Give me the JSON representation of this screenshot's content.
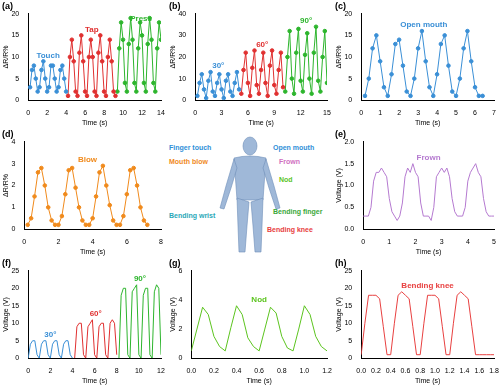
{
  "chart_data": [
    {
      "type": "line",
      "title": "(a)",
      "x_label": "Time (s)",
      "y_label": "ΔR/R%",
      "marker": "circle",
      "grid": false,
      "xlim": [
        0,
        14
      ],
      "xticks": [
        0,
        2,
        4,
        6,
        8,
        10,
        12,
        14
      ],
      "ylim": [
        0,
        20
      ],
      "yticks": [
        0,
        5,
        10,
        15,
        20
      ],
      "series": [
        {
          "name": "Touch",
          "color": "#3a8fd6",
          "x": [
            0.2,
            0.4,
            0.6,
            0.8,
            1,
            1.2,
            1.4,
            1.6,
            1.8,
            2,
            2.2,
            2.4,
            2.6,
            2.8,
            3,
            3.2,
            3.4,
            3.6,
            3.8,
            4
          ],
          "values": [
            3,
            7,
            8,
            5,
            2,
            3,
            7,
            9,
            5,
            2,
            3,
            8,
            8,
            5,
            2,
            3,
            7,
            8,
            5,
            2
          ]
        },
        {
          "name": "Tap",
          "color": "#e03030",
          "x": [
            4.2,
            4.4,
            4.6,
            4.8,
            5,
            5.2,
            5.4,
            5.6,
            5.8,
            6,
            6.2,
            6.4,
            6.6,
            6.8,
            7,
            7.2,
            7.4,
            7.6,
            7.8,
            8,
            8.2,
            8.4,
            8.6,
            8.8,
            9,
            9.2
          ],
          "values": [
            1,
            10,
            14,
            9,
            2,
            1,
            11,
            15,
            9,
            2,
            1,
            10,
            14,
            10,
            2,
            1,
            11,
            15,
            9,
            2,
            1,
            10,
            14,
            9,
            2,
            1
          ]
        },
        {
          "name": "Press",
          "color": "#2db52d",
          "x": [
            9.4,
            9.6,
            9.8,
            10,
            10.2,
            10.4,
            10.6,
            10.8,
            11,
            11.2,
            11.4,
            11.6,
            11.8,
            12,
            12.2,
            12.4,
            12.6,
            12.8,
            13,
            13.2,
            13.4,
            13.6,
            13.8,
            14,
            14.2,
            14.4
          ],
          "values": [
            2,
            12,
            18,
            14,
            4,
            2,
            13,
            19,
            14,
            4,
            2,
            12,
            18,
            15,
            4,
            2,
            13,
            19,
            14,
            4,
            2,
            12,
            18,
            14,
            4,
            2
          ]
        }
      ]
    },
    {
      "type": "line",
      "title": "(b)",
      "x_label": "Time (s)",
      "y_label": "ΔR/R%",
      "marker": "circle",
      "grid": false,
      "xlim": [
        0,
        15
      ],
      "xticks": [
        0,
        3,
        6,
        9,
        12,
        15
      ],
      "ylim": [
        0,
        40
      ],
      "yticks": [
        0,
        10,
        20,
        30,
        40
      ],
      "series": [
        {
          "name": "30°",
          "color": "#3a8fd6",
          "x": [
            0.25,
            0.5,
            0.75,
            1,
            1.25,
            1.5,
            1.75,
            2,
            2.25,
            2.5,
            2.75,
            3,
            3.25,
            3.5,
            3.75,
            4,
            4.25,
            4.5,
            4.75,
            5
          ],
          "values": [
            2,
            8,
            12,
            5,
            1,
            9,
            13,
            4,
            2,
            8,
            12,
            5,
            1,
            9,
            12,
            4,
            2,
            8,
            13,
            5
          ]
        },
        {
          "name": "60°",
          "color": "#e03030",
          "x": [
            5.25,
            5.5,
            5.75,
            6,
            6.25,
            6.5,
            6.75,
            7,
            7.25,
            7.5,
            7.75,
            8,
            8.25,
            8.5,
            8.75,
            9,
            9.25,
            9.5,
            9.75,
            10
          ],
          "values": [
            3,
            14,
            22,
            8,
            2,
            15,
            23,
            7,
            3,
            14,
            22,
            8,
            2,
            16,
            23,
            7,
            3,
            14,
            22,
            6
          ]
        },
        {
          "name": "90°",
          "color": "#2db52d",
          "x": [
            10.25,
            10.5,
            10.75,
            11,
            11.25,
            11.5,
            11.75,
            12,
            12.25,
            12.5,
            12.75,
            13,
            13.25,
            13.5,
            13.75,
            14,
            14.25,
            14.5,
            14.75,
            15
          ],
          "values": [
            4,
            20,
            32,
            10,
            3,
            22,
            33,
            9,
            4,
            21,
            31,
            10,
            3,
            22,
            34,
            9,
            4,
            20,
            32,
            8
          ]
        }
      ]
    },
    {
      "type": "line",
      "title": "(c)",
      "x_label": "Time (s)",
      "y_label": "ΔR/R%",
      "marker": "circle",
      "grid": false,
      "xlim": [
        0,
        7
      ],
      "xticks": [
        0,
        1,
        2,
        3,
        4,
        5,
        6,
        7
      ],
      "ylim": [
        0,
        20
      ],
      "yticks": [
        0,
        5,
        10,
        15,
        20
      ],
      "series": [
        {
          "name": "Open mouth",
          "color": "#3a8fd6",
          "x": [
            0.2,
            0.4,
            0.6,
            0.8,
            1,
            1.2,
            1.4,
            1.6,
            1.8,
            2,
            2.2,
            2.4,
            2.6,
            2.8,
            3,
            3.2,
            3.4,
            3.6,
            3.8,
            4,
            4.2,
            4.4,
            4.6,
            4.8,
            5,
            5.2,
            5.4,
            5.6,
            5.8,
            6,
            6.2,
            6.4
          ],
          "values": [
            1,
            5,
            12,
            15,
            9,
            3,
            1,
            6,
            13,
            14,
            8,
            2,
            1,
            5,
            12,
            16,
            9,
            3,
            1,
            6,
            13,
            15,
            8,
            2,
            1,
            5,
            12,
            16,
            9,
            3,
            1,
            1
          ]
        }
      ]
    },
    {
      "type": "line",
      "title": "(d)",
      "x_label": "Time (s)",
      "y_label": "ΔR/R%",
      "marker": "circle",
      "grid": false,
      "xlim": [
        0,
        8
      ],
      "xticks": [
        0,
        2,
        4,
        6,
        8
      ],
      "ylim": [
        0,
        4
      ],
      "yticks": [
        0,
        1,
        2,
        3,
        4
      ],
      "series": [
        {
          "name": "Blow",
          "color": "#f08a1c",
          "x": [
            0.2,
            0.4,
            0.6,
            0.8,
            1,
            1.2,
            1.4,
            1.6,
            1.8,
            2,
            2.2,
            2.4,
            2.6,
            2.8,
            3,
            3.2,
            3.4,
            3.6,
            3.8,
            4,
            4.2,
            4.4,
            4.6,
            4.8,
            5,
            5.2,
            5.4,
            5.6,
            5.8,
            6,
            6.2,
            6.4,
            6.6,
            6.8,
            7,
            7.2
          ],
          "values": [
            0.2,
            0.5,
            1.5,
            2.6,
            2.8,
            2,
            1,
            0.4,
            0.2,
            0.2,
            0.6,
            1.6,
            2.7,
            2.8,
            1.9,
            1,
            0.4,
            0.2,
            0.2,
            0.5,
            1.5,
            2.6,
            2.9,
            2,
            1.1,
            0.4,
            0.2,
            0.2,
            0.6,
            1.6,
            2.7,
            2.8,
            2,
            1,
            0.4,
            0.2
          ]
        }
      ]
    },
    {
      "type": "line",
      "title": "(e)",
      "x_label": "Time (s)",
      "y_label": "Voltage (V)",
      "grid": false,
      "xlim": [
        0,
        5
      ],
      "xticks": [
        0,
        1,
        2,
        3,
        4,
        5
      ],
      "ylim": [
        0,
        2
      ],
      "yticks": [
        {
          "value": 0,
          "label": "0.0"
        },
        0.5,
        {
          "value": 1,
          "label": "1.0"
        },
        1.5,
        {
          "value": 2,
          "label": "2.0"
        }
      ],
      "series": [
        {
          "name": "Frown",
          "color": "#b57ad0",
          "x": [
            0,
            0.1,
            0.2,
            0.3,
            0.4,
            0.5,
            0.6,
            0.7,
            0.8,
            0.9,
            1,
            1.1,
            1.2,
            1.3,
            1.4,
            1.5,
            1.6,
            1.7,
            1.8,
            1.9,
            2,
            2.1,
            2.2,
            2.3,
            2.4,
            2.5,
            2.6,
            2.7,
            2.8,
            2.9,
            3,
            3.1,
            3.2,
            3.3,
            3.4,
            3.5,
            3.6,
            3.7,
            3.8,
            3.9,
            4,
            4.1,
            4.2,
            4.3,
            4.4,
            4.5,
            4.6,
            4.7,
            4.8,
            4.9,
            5
          ],
          "values": [
            0.3,
            0.3,
            0.3,
            0.5,
            1.1,
            1.3,
            1.3,
            1.4,
            1.3,
            1.2,
            0.7,
            0.4,
            0.3,
            0.2,
            0.3,
            0.6,
            1.2,
            1.4,
            1.3,
            1.5,
            1.3,
            1.2,
            0.6,
            0.3,
            0.3,
            0.3,
            0.2,
            0.5,
            1.2,
            1.3,
            1.4,
            1.3,
            1.4,
            1.2,
            0.7,
            0.4,
            0.3,
            0.3,
            0.3,
            0.5,
            1.1,
            1.3,
            1.4,
            1.5,
            1.3,
            1.2,
            0.7,
            0.4,
            0.3,
            0.3,
            0.3
          ]
        }
      ]
    },
    {
      "type": "line",
      "title": "(f)",
      "x_label": "Time (s)",
      "y_label": "Voltage (V)",
      "grid": false,
      "xlim": [
        0,
        12
      ],
      "xticks": [
        0,
        2,
        4,
        6,
        8,
        10,
        12
      ],
      "ylim": [
        0,
        25
      ],
      "yticks": [
        0,
        5,
        10,
        15,
        20,
        25
      ],
      "series": [
        {
          "name": "30°",
          "color": "#3a8fd6",
          "x": [
            0,
            0.2,
            0.4,
            0.6,
            0.8,
            1,
            1.2,
            1.4,
            1.6,
            1.8,
            2,
            2.2,
            2.4,
            2.6,
            2.8,
            3,
            3.2,
            3.4,
            3.6,
            3.8,
            4
          ],
          "values": [
            0,
            4,
            5,
            5,
            1,
            0,
            4,
            5,
            5,
            1,
            0,
            4,
            5,
            5,
            1,
            0,
            4,
            5,
            5,
            1,
            0
          ]
        },
        {
          "name": "60°",
          "color": "#e03030",
          "x": [
            4.2,
            4.4,
            4.6,
            4.8,
            5,
            5.2,
            5.4,
            5.6,
            5.8,
            6,
            6.2,
            6.4,
            6.6,
            6.8,
            7,
            7.2,
            7.4,
            7.6,
            7.8,
            8
          ],
          "values": [
            0,
            9,
            10,
            10,
            1,
            0,
            9,
            10,
            11,
            1,
            0,
            9,
            10,
            10,
            1,
            0,
            10,
            11,
            10,
            1
          ]
        },
        {
          "name": "90°",
          "color": "#2db52d",
          "x": [
            8.2,
            8.4,
            8.6,
            8.8,
            9,
            9.2,
            9.4,
            9.6,
            9.8,
            10,
            10.2,
            10.4,
            10.6,
            10.8,
            11,
            11.2,
            11.4,
            11.6,
            11.8,
            12
          ],
          "values": [
            0,
            18,
            20,
            20,
            1,
            0,
            19,
            20,
            21,
            1,
            0,
            18,
            20,
            20,
            1,
            0,
            19,
            21,
            20,
            1
          ]
        }
      ]
    },
    {
      "type": "line",
      "title": "(g)",
      "x_label": "Time (s)",
      "y_label": "Voltage (V)",
      "grid": false,
      "xlim": [
        0,
        1.2
      ],
      "xticks": [
        {
          "value": 0,
          "label": "0.0"
        },
        0.2,
        0.4,
        0.6,
        0.8,
        {
          "value": 1,
          "label": "1.0"
        },
        1.2
      ],
      "ylim": [
        0,
        6
      ],
      "yticks": [
        0,
        2,
        4,
        6
      ],
      "series": [
        {
          "name": "Nod",
          "color": "#5cc41f",
          "x": [
            0,
            0.05,
            0.1,
            0.15,
            0.2,
            0.25,
            0.3,
            0.35,
            0.4,
            0.45,
            0.5,
            0.55,
            0.6,
            0.65,
            0.7,
            0.75,
            0.8,
            0.85,
            0.9,
            0.95,
            1,
            1.05,
            1.1,
            1.15,
            1.2
          ],
          "values": [
            0.5,
            2,
            3.5,
            3,
            1.5,
            0.8,
            0.5,
            2.1,
            3.6,
            3,
            1.4,
            0.8,
            0.5,
            2,
            3.5,
            3.1,
            1.5,
            0.7,
            0.5,
            2,
            3.6,
            3,
            1.5,
            0.8,
            0.5
          ]
        }
      ]
    },
    {
      "type": "line",
      "title": "(h)",
      "x_label": "Time (s)",
      "y_label": "Voltage (V)",
      "grid": false,
      "xlim": [
        0,
        1.8
      ],
      "xticks": [
        {
          "value": 0,
          "label": "0.0"
        },
        0.2,
        0.4,
        0.6,
        0.8,
        {
          "value": 1,
          "label": "1.0"
        },
        1.2,
        1.4,
        1.6,
        1.8
      ],
      "ylim": [
        0,
        25
      ],
      "yticks": [
        0,
        5,
        10,
        15,
        20,
        25
      ],
      "series": [
        {
          "name": "Bending knee",
          "color": "#e84040",
          "x": [
            0,
            0.05,
            0.1,
            0.15,
            0.2,
            0.25,
            0.3,
            0.35,
            0.4,
            0.45,
            0.5,
            0.55,
            0.6,
            0.65,
            0.7,
            0.75,
            0.8,
            0.85,
            0.9,
            0.95,
            1,
            1.05,
            1.1,
            1.15,
            1.2,
            1.25,
            1.3,
            1.35,
            1.4,
            1.45,
            1.5,
            1.55,
            1.6,
            1.65,
            1.7,
            1.75,
            1.8
          ],
          "values": [
            1,
            10,
            18,
            18,
            18,
            17,
            9,
            1,
            1,
            10,
            18,
            19,
            18,
            17,
            9,
            1,
            1,
            10,
            18,
            18,
            18,
            17,
            9,
            1,
            1,
            10,
            18,
            19,
            18,
            17,
            9,
            1,
            1,
            1,
            1,
            1,
            1
          ]
        }
      ]
    }
  ],
  "diagram": {
    "labels": [
      {
        "text": "Finger touch",
        "color": "#2f8fd8"
      },
      {
        "text": "Mouth blow",
        "color": "#f08a1c"
      },
      {
        "text": "Bending wrist",
        "color": "#2aa8b8"
      },
      {
        "text": "Open mouth",
        "color": "#2f8fd8"
      },
      {
        "text": "Frown",
        "color": "#d070c0"
      },
      {
        "text": "Nod",
        "color": "#5cc41f"
      },
      {
        "text": "Bending finger",
        "color": "#3aa83a"
      },
      {
        "text": "Bending knee",
        "color": "#e84040"
      }
    ]
  }
}
